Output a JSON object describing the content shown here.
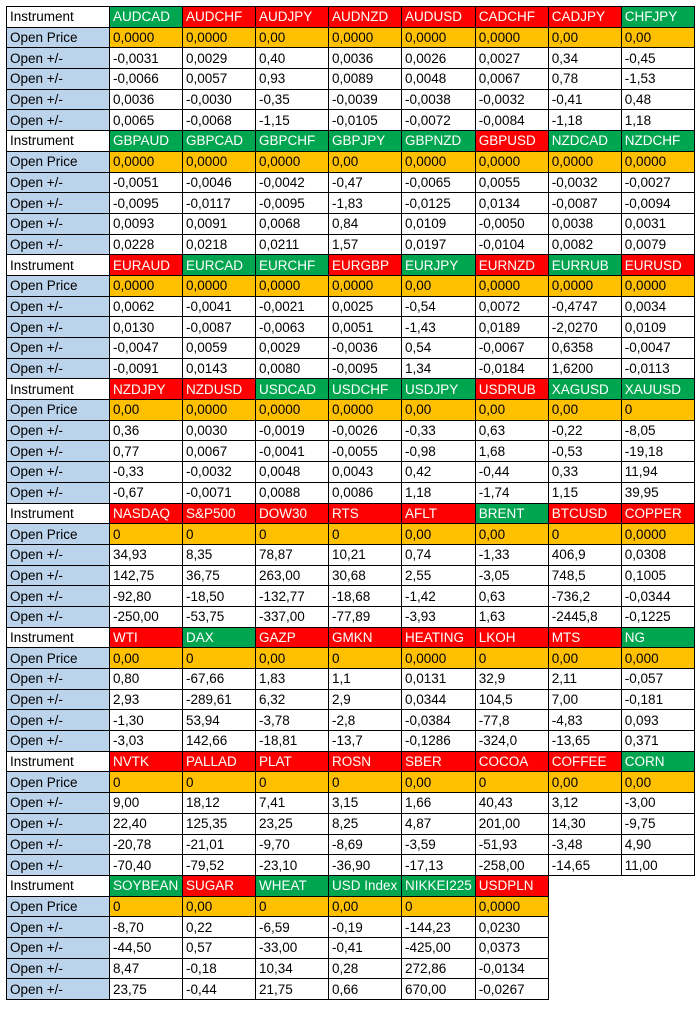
{
  "labels": {
    "instrument": "Instrument",
    "open_price": "Open Price",
    "open_diff": "Open +/-"
  },
  "colors": {
    "green": "#00a550",
    "red": "#ff0000",
    "price_bg": "#ffc000",
    "label_bg": "#bcd3ec"
  },
  "blocks": [
    {
      "instruments": [
        {
          "name": "AUDCAD",
          "color": "green"
        },
        {
          "name": "AUDCHF",
          "color": "red"
        },
        {
          "name": "AUDJPY",
          "color": "red"
        },
        {
          "name": "AUDNZD",
          "color": "red"
        },
        {
          "name": "AUDUSD",
          "color": "red"
        },
        {
          "name": "CADCHF",
          "color": "red"
        },
        {
          "name": "CADJPY",
          "color": "red"
        },
        {
          "name": "CHFJPY",
          "color": "green"
        }
      ],
      "open_price": [
        "0,0000",
        "0,0000",
        "0,00",
        "0,0000",
        "0,0000",
        "0,0000",
        "0,00",
        "0,00"
      ],
      "diffs": [
        [
          "-0,0031",
          "0,0029",
          "0,40",
          "0,0036",
          "0,0026",
          "0,0027",
          "0,34",
          "-0,45"
        ],
        [
          "-0,0066",
          "0,0057",
          "0,93",
          "0,0089",
          "0,0048",
          "0,0067",
          "0,78",
          "-1,53"
        ],
        [
          "0,0036",
          "-0,0030",
          "-0,35",
          "-0,0039",
          "-0,0038",
          "-0,0032",
          "-0,41",
          "0,48"
        ],
        [
          "0,0065",
          "-0,0068",
          "-1,15",
          "-0,0105",
          "-0,0072",
          "-0,0084",
          "-1,18",
          "1,18"
        ]
      ]
    },
    {
      "instruments": [
        {
          "name": "GBPAUD",
          "color": "green"
        },
        {
          "name": "GBPCAD",
          "color": "green"
        },
        {
          "name": "GBPCHF",
          "color": "green"
        },
        {
          "name": "GBPJPY",
          "color": "green"
        },
        {
          "name": "GBPNZD",
          "color": "green"
        },
        {
          "name": "GBPUSD",
          "color": "red"
        },
        {
          "name": "NZDCAD",
          "color": "green"
        },
        {
          "name": "NZDCHF",
          "color": "green"
        }
      ],
      "open_price": [
        "0,0000",
        "0,0000",
        "0,0000",
        "0,00",
        "0,0000",
        "0,0000",
        "0,0000",
        "0,0000"
      ],
      "diffs": [
        [
          "-0,0051",
          "-0,0046",
          "-0,0042",
          "-0,47",
          "-0,0065",
          "0,0055",
          "-0,0032",
          "-0,0027"
        ],
        [
          "-0,0095",
          "-0,0117",
          "-0,0095",
          "-1,83",
          "-0,0125",
          "0,0134",
          "-0,0087",
          "-0,0094"
        ],
        [
          "0,0093",
          "0,0091",
          "0,0068",
          "0,84",
          "0,0109",
          "-0,0050",
          "0,0038",
          "0,0031"
        ],
        [
          "0,0228",
          "0,0218",
          "0,0211",
          "1,57",
          "0,0197",
          "-0,0104",
          "0,0082",
          "0,0079"
        ]
      ]
    },
    {
      "instruments": [
        {
          "name": "EURAUD",
          "color": "red"
        },
        {
          "name": "EURCAD",
          "color": "green"
        },
        {
          "name": "EURCHF",
          "color": "green"
        },
        {
          "name": "EURGBP",
          "color": "red"
        },
        {
          "name": "EURJPY",
          "color": "green"
        },
        {
          "name": "EURNZD",
          "color": "red"
        },
        {
          "name": "EURRUB",
          "color": "green"
        },
        {
          "name": "EURUSD",
          "color": "red"
        }
      ],
      "open_price": [
        "0,0000",
        "0,0000",
        "0,0000",
        "0,0000",
        "0,00",
        "0,0000",
        "0,0000",
        "0,0000"
      ],
      "diffs": [
        [
          "0,0062",
          "-0,0041",
          "-0,0021",
          "0,0025",
          "-0,54",
          "0,0072",
          "-0,4747",
          "0,0034"
        ],
        [
          "0,0130",
          "-0,0087",
          "-0,0063",
          "0,0051",
          "-1,43",
          "0,0189",
          "-2,0270",
          "0,0109"
        ],
        [
          "-0,0047",
          "0,0059",
          "0,0029",
          "-0,0036",
          "0,54",
          "-0,0067",
          "0,6358",
          "-0,0047"
        ],
        [
          "-0,0091",
          "0,0143",
          "0,0080",
          "-0,0095",
          "1,34",
          "-0,0184",
          "1,6200",
          "-0,0113"
        ]
      ]
    },
    {
      "instruments": [
        {
          "name": "NZDJPY",
          "color": "red"
        },
        {
          "name": "NZDUSD",
          "color": "red"
        },
        {
          "name": "USDCAD",
          "color": "green"
        },
        {
          "name": "USDCHF",
          "color": "green"
        },
        {
          "name": "USDJPY",
          "color": "green"
        },
        {
          "name": "USDRUB",
          "color": "red"
        },
        {
          "name": "XAGUSD",
          "color": "green"
        },
        {
          "name": "XAUUSD",
          "color": "green"
        }
      ],
      "open_price": [
        "0,00",
        "0,0000",
        "0,0000",
        "0,0000",
        "0,00",
        "0,00",
        "0,00",
        "0"
      ],
      "diffs": [
        [
          "0,36",
          "0,0030",
          "-0,0019",
          "-0,0026",
          "-0,33",
          "0,63",
          "-0,22",
          "-8,05"
        ],
        [
          "0,77",
          "0,0067",
          "-0,0041",
          "-0,0055",
          "-0,98",
          "1,68",
          "-0,53",
          "-19,18"
        ],
        [
          "-0,33",
          "-0,0032",
          "0,0048",
          "0,0043",
          "0,42",
          "-0,44",
          "0,33",
          "11,94"
        ],
        [
          "-0,67",
          "-0,0071",
          "0,0088",
          "0,0086",
          "1,18",
          "-1,74",
          "1,15",
          "39,95"
        ]
      ]
    },
    {
      "instruments": [
        {
          "name": "NASDAQ",
          "color": "red"
        },
        {
          "name": "S&P500",
          "color": "red"
        },
        {
          "name": "DOW30",
          "color": "red"
        },
        {
          "name": "RTS",
          "color": "red"
        },
        {
          "name": "AFLT",
          "color": "red"
        },
        {
          "name": "BRENT",
          "color": "green"
        },
        {
          "name": "BTCUSD",
          "color": "red"
        },
        {
          "name": "COPPER",
          "color": "red"
        }
      ],
      "open_price": [
        "0",
        "0",
        "0",
        "0",
        "0,00",
        "0,00",
        "0",
        "0,0000"
      ],
      "diffs": [
        [
          "34,93",
          "8,35",
          "78,87",
          "10,21",
          "0,74",
          "-1,33",
          "406,9",
          "0,0308"
        ],
        [
          "142,75",
          "36,75",
          "263,00",
          "30,68",
          "2,55",
          "-3,05",
          "748,5",
          "0,1005"
        ],
        [
          "-92,80",
          "-18,50",
          "-132,77",
          "-18,68",
          "-1,42",
          "0,63",
          "-736,2",
          "-0,0344"
        ],
        [
          "-250,00",
          "-53,75",
          "-337,00",
          "-77,89",
          "-3,93",
          "1,63",
          "-2445,8",
          "-0,1225"
        ]
      ]
    },
    {
      "instruments": [
        {
          "name": "WTI",
          "color": "red"
        },
        {
          "name": "DAX",
          "color": "green"
        },
        {
          "name": "GAZP",
          "color": "red"
        },
        {
          "name": "GMKN",
          "color": "red"
        },
        {
          "name": "HEATING",
          "color": "red"
        },
        {
          "name": "LKOH",
          "color": "red"
        },
        {
          "name": "MTS",
          "color": "red"
        },
        {
          "name": "NG",
          "color": "green"
        }
      ],
      "open_price": [
        "0,00",
        "0",
        "0,00",
        "0",
        "0,0000",
        "0",
        "0,00",
        "0,000"
      ],
      "diffs": [
        [
          "0,80",
          "-67,66",
          "1,83",
          "1,1",
          "0,0131",
          "32,9",
          "2,11",
          "-0,057"
        ],
        [
          "2,93",
          "-289,61",
          "6,32",
          "2,9",
          "0,0344",
          "104,5",
          "7,00",
          "-0,181"
        ],
        [
          "-1,30",
          "53,94",
          "-3,78",
          "-2,8",
          "-0,0384",
          "-77,8",
          "-4,83",
          "0,093"
        ],
        [
          "-3,03",
          "142,66",
          "-18,81",
          "-13,7",
          "-0,1286",
          "-324,0",
          "-13,65",
          "0,371"
        ]
      ]
    },
    {
      "instruments": [
        {
          "name": "NVTK",
          "color": "red"
        },
        {
          "name": "PALLAD",
          "color": "red"
        },
        {
          "name": "PLAT",
          "color": "red"
        },
        {
          "name": "ROSN",
          "color": "red"
        },
        {
          "name": "SBER",
          "color": "red"
        },
        {
          "name": "COCOA",
          "color": "red"
        },
        {
          "name": "COFFEE",
          "color": "red"
        },
        {
          "name": "CORN",
          "color": "green"
        }
      ],
      "open_price": [
        "0",
        "0",
        "0",
        "0",
        "0,00",
        "0",
        "0,00",
        "0,00"
      ],
      "diffs": [
        [
          "9,00",
          "18,12",
          "7,41",
          "3,15",
          "1,66",
          "40,43",
          "3,12",
          "-3,00"
        ],
        [
          "22,40",
          "125,35",
          "23,25",
          "8,25",
          "4,87",
          "201,00",
          "14,30",
          "-9,75"
        ],
        [
          "-20,78",
          "-21,01",
          "-9,70",
          "-8,69",
          "-3,59",
          "-51,93",
          "-3,48",
          "4,90"
        ],
        [
          "-70,40",
          "-79,52",
          "-23,10",
          "-36,90",
          "-17,13",
          "-258,00",
          "-14,65",
          "11,00"
        ]
      ]
    },
    {
      "instruments": [
        {
          "name": "SOYBEAN",
          "color": "green"
        },
        {
          "name": "SUGAR",
          "color": "red"
        },
        {
          "name": "WHEAT",
          "color": "green"
        },
        {
          "name": "USD Index",
          "color": "green"
        },
        {
          "name": "NIKKEI225",
          "color": "green"
        },
        {
          "name": "USDPLN",
          "color": "red"
        }
      ],
      "open_price": [
        "0",
        "0,00",
        "0",
        "0,00",
        "0",
        "0,0000"
      ],
      "diffs": [
        [
          "-8,70",
          "0,22",
          "-6,59",
          "-0,19",
          "-144,23",
          "0,0230"
        ],
        [
          "-44,50",
          "0,57",
          "-33,00",
          "-0,41",
          "-425,00",
          "0,0373"
        ],
        [
          "8,47",
          "-0,18",
          "10,34",
          "0,28",
          "272,86",
          "-0,0134"
        ],
        [
          "23,75",
          "-0,44",
          "21,75",
          "0,66",
          "670,00",
          "-0,0267"
        ]
      ]
    }
  ]
}
